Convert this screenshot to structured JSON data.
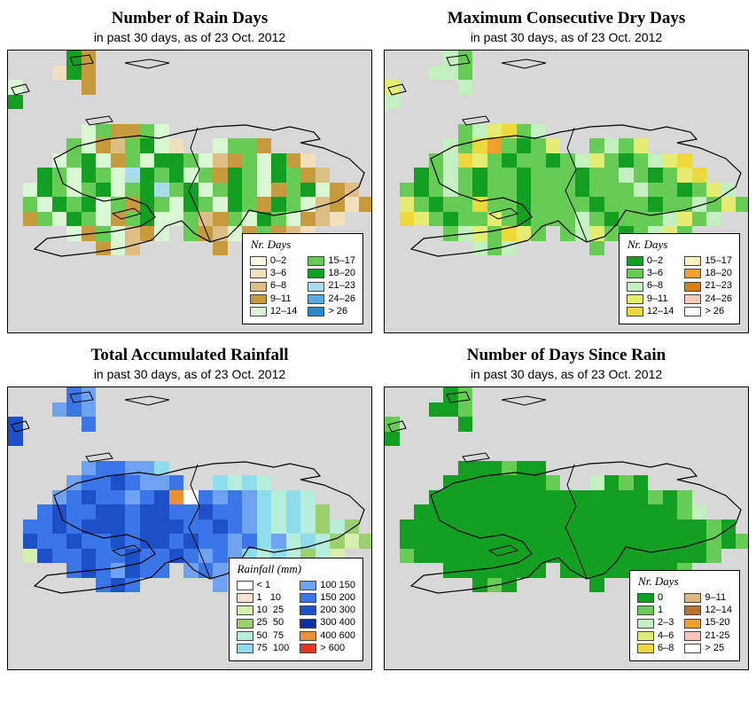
{
  "figure": {
    "cell_size": 16.5,
    "map_background": "#D8D8D8",
    "outline_color": "#000000"
  },
  "panels": [
    {
      "id": "rain-days",
      "title": "Number of Rain Days",
      "subtitle": "in past 30 days, as of  23 Oct. 2012",
      "legend": {
        "label": "Nr. Days",
        "columns": [
          [
            {
              "label": "0–2",
              "color": "#FFF6E6"
            },
            {
              "label": "3–6",
              "color": "#F2DFBD"
            },
            {
              "label": "6–8",
              "color": "#DDBE85"
            },
            {
              "label": "9–11",
              "color": "#C79A3E"
            },
            {
              "label": "12–14",
              "color": "#D9F7D3"
            }
          ],
          [
            {
              "label": "15–17",
              "color": "#66CC55"
            },
            {
              "label": "18–20",
              "color": "#13A022"
            },
            {
              "label": "21–23",
              "color": "#A8DCEE"
            },
            {
              "label": "24–26",
              "color": "#59AADD"
            },
            {
              "label": "> 26",
              "color": "#2E86C6"
            }
          ]
        ]
      },
      "palette": {
        "a": "#FFF6E6",
        "b": "#F2DFBD",
        "c": "#DDBE85",
        "d": "#C79A3E",
        "e": "#D9F7D3",
        "f": "#66CC55",
        "g": "#13A022",
        "h": "#A8DCEE",
        "i": "#59AADD",
        "j": "#2E86C6"
      },
      "grid": [
        "....gd...................",
        "...bgd...................",
        "e....d...................",
        "g........................",
        ".........................",
        ".....efddfe..............",
        "....fedcfgeb..effd.......",
        "...efgedfeggfecdfegdb....",
        "..gfegfehgfgefdgfegfdc...",
        ".egfefgefghfgefgfedfgedc.",
        ".fegfgefdgfegfegfdgfecdbd",
        ".dfegfedfgeefcdfegfedcb..",
        "....edfecde.fdcedfdcb....",
        "......dec.....d..........",
        "........................."
      ]
    },
    {
      "id": "dry-days",
      "title": "Maximum Consecutive Dry Days",
      "subtitle": "in past 30 days, as of  23 Oct. 2012",
      "legend": {
        "label": "Nr. Days",
        "columns": [
          [
            {
              "label": "0–2",
              "color": "#13A022"
            },
            {
              "label": "3–6",
              "color": "#66CC55"
            },
            {
              "label": "6–8",
              "color": "#C4EFC0"
            },
            {
              "label": "9–11",
              "color": "#E4EC72"
            },
            {
              "label": "12–14",
              "color": "#EFD83C"
            }
          ],
          [
            {
              "label": "15–17",
              "color": "#FBF3C4"
            },
            {
              "label": "18–20",
              "color": "#EFA02F"
            },
            {
              "label": "21–23",
              "color": "#DB7E14"
            },
            {
              "label": "24–26",
              "color": "#FBCDB9"
            },
            {
              "label": "> 26",
              "color": "#FFFFFF"
            }
          ]
        ]
      },
      "palette": {
        "a": "#13A022",
        "b": "#66CC55",
        "c": "#C4EFC0",
        "d": "#E4EC72",
        "e": "#EFD83C",
        "f": "#FBF3C4",
        "g": "#EFA02F",
        "h": "#DB7E14",
        "i": "#FBCDB9",
        "j": "#FFFFFF"
      },
      "grid": [
        "....cb...................",
        "...ccb...................",
        "d....c...................",
        "c........................",
        ".........................",
        ".....bcdebc..............",
        "....cbegbabd..bcbd.......",
        "...bcedbabbabcdbabcde....",
        "..abcbabbabbbabbcbabde...",
        ".babcbabbabbbabbbcbbabdc.",
        ".dbabbebbabbbbabbbabbcbdb",
        ".edbabbdbabbbcbabbbcdbc..",
        "....bcdbedb.bcdbabcdb....",
        "......cbc.....b..........",
        "........................."
      ]
    },
    {
      "id": "accumulated-rainfall",
      "title": "Total Accumulated Rainfall",
      "subtitle": "in past 30 days, as of  23 Oct. 2012",
      "legend": {
        "label": "Rainfall (mm)",
        "columns": [
          [
            {
              "label": "< 1",
              "color": "#FFFFFF"
            },
            {
              "label": "1   10",
              "color": "#F6E3D3"
            },
            {
              "label": "10  25",
              "color": "#D8EFB2"
            },
            {
              "label": "25  50",
              "color": "#9CCF6F"
            },
            {
              "label": "50  75",
              "color": "#B5EFDC"
            },
            {
              "label": "75  100",
              "color": "#8FDCEC"
            }
          ],
          [
            {
              "label": "100 150",
              "color": "#6FA3F2"
            },
            {
              "label": "150 200",
              "color": "#3B76E8"
            },
            {
              "label": "200 300",
              "color": "#1D50C8"
            },
            {
              "label": "300 400",
              "color": "#0B2FA0"
            },
            {
              "label": "400 600",
              "color": "#EF8F2F"
            },
            {
              "label": "> 600",
              "color": "#E83419"
            }
          ]
        ]
      },
      "palette": {
        "a": "#FFFFFF",
        "b": "#F6E3D3",
        "c": "#D8EFB2",
        "d": "#9CCF6F",
        "e": "#B5EFDC",
        "f": "#8FDCEC",
        "g": "#6FA3F2",
        "h": "#3B76E8",
        "i": "#1D50C8",
        "j": "#0B2FA0",
        "k": "#EF8F2F",
        "l": "#E83419"
      },
      "grid": [
        "....hg...................",
        "...ghg...................",
        "i....h...................",
        "i........................",
        ".........................",
        ".....ghhggf..............",
        "....ghhihggh..fefe.......",
        "...ghihhghikahghgfefe....",
        "..hihhiihiihhihhgfefed...",
        ".hhihiiihiiihhihgfefeded.",
        ".ihhihhihiihihhghfgefedcd",
        ".cihhihhihhihghgfefedec..",
        "....hihgihh.ghgfefede....",
        "......hih.....g..........",
        "........................."
      ]
    },
    {
      "id": "days-since-rain",
      "title": "Number of Days Since Rain",
      "subtitle": "in past 30 days, as of  23 Oct. 2012",
      "legend": {
        "label": "Nr. Days",
        "columns": [
          [
            {
              "label": "0",
              "color": "#13A022"
            },
            {
              "label": "1",
              "color": "#66CC55"
            },
            {
              "label": "2–3",
              "color": "#C4EFC0"
            },
            {
              "label": "4–6",
              "color": "#E0EC72"
            },
            {
              "label": "6–8",
              "color": "#EFD83C"
            }
          ],
          [
            {
              "label": "9–11",
              "color": "#D9B97E"
            },
            {
              "label": "12–14",
              "color": "#B5742F"
            },
            {
              "label": "15-20",
              "color": "#EFA02F"
            },
            {
              "label": "21-25",
              "color": "#FBC4B9"
            },
            {
              "label": "> 25",
              "color": "#FFFFFF"
            }
          ]
        ]
      },
      "palette": {
        "a": "#13A022",
        "b": "#66CC55",
        "c": "#C4EFC0",
        "d": "#E0EC72",
        "e": "#EFD83C",
        "f": "#D9B97E",
        "g": "#B5742F",
        "h": "#EFA02F",
        "i": "#FBC4B9",
        "j": "#FFFFFF"
      },
      "grid": [
        "....ab...................",
        "...aab...................",
        "b....a...................",
        "a........................",
        ".........................",
        ".....aaabaa..............",
        "....aaaaaaab..caba.......",
        "...aaaaaaaaaaaaaaabab....",
        "..aaaaaaaaaaaaaaaaaabc...",
        ".aaaaaaaaaaaaaaaaaaaaaba.",
        ".aaaaaaaaaaaaaaaaaaaaabab",
        ".baaaaaaaaaaaaaaaaaaaab..",
        "....aaaaaaa.aaaaaaaab....",
        "......aba.....a..........",
        "........................."
      ]
    }
  ]
}
